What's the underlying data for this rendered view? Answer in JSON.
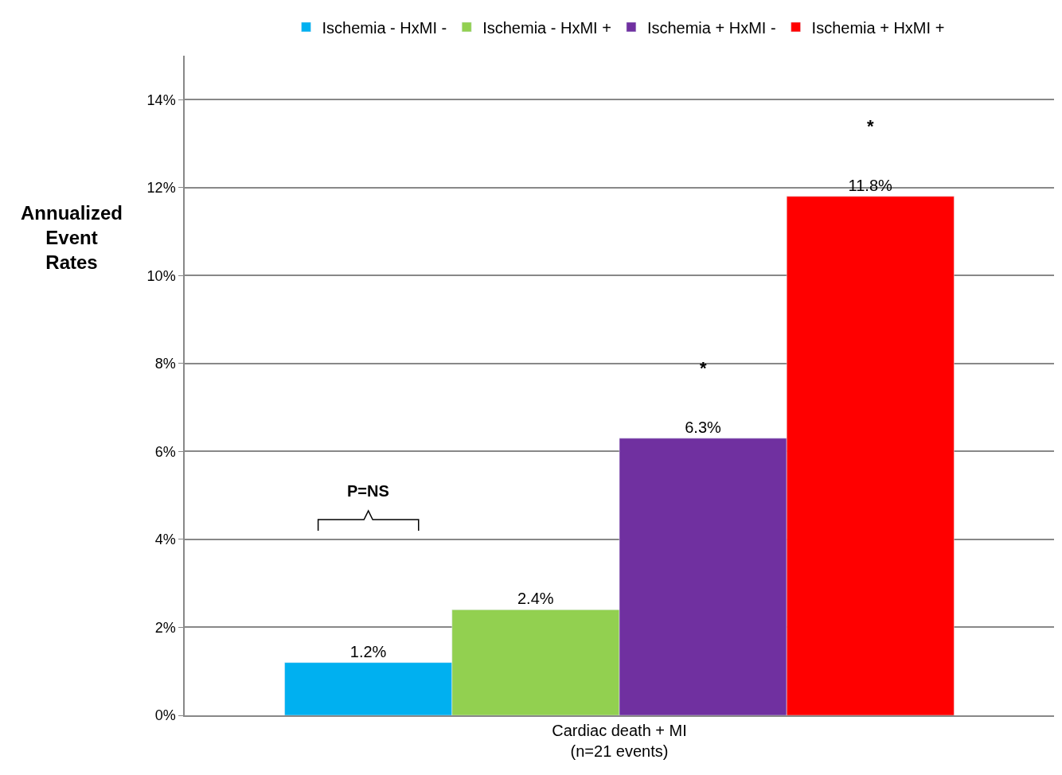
{
  "chart_data": {
    "type": "bar",
    "ylabel": "Annualized Event Rates",
    "categories": [
      "Cardiac death + MI\n(n=21 events)"
    ],
    "series": [
      {
        "name": "Ischemia - HxMI -",
        "color": "#00b0f0",
        "values": [
          1.2
        ],
        "value_labels": [
          "1.2%"
        ]
      },
      {
        "name": "Ischemia - HxMI +",
        "color": "#92d050",
        "values": [
          2.4
        ],
        "value_labels": [
          "2.4%"
        ]
      },
      {
        "name": "Ischemia + HxMI -",
        "color": "#7030a0",
        "values": [
          6.3
        ],
        "value_labels": [
          "6.3%"
        ]
      },
      {
        "name": "Ischemia + HxMI +",
        "color": "#ff0000",
        "values": [
          11.8
        ],
        "value_labels": [
          "11.8%"
        ]
      }
    ],
    "annotations": [
      "P=NS",
      "*",
      "*"
    ],
    "ylim": [
      0,
      15
    ],
    "yticks": [
      {
        "value": 0,
        "label": "0%"
      },
      {
        "value": 2,
        "label": "2%"
      },
      {
        "value": 4,
        "label": "4%"
      },
      {
        "value": 6,
        "label": "6%"
      },
      {
        "value": 8,
        "label": "8%"
      },
      {
        "value": 10,
        "label": "10%"
      },
      {
        "value": 12,
        "label": "12%"
      },
      {
        "value": 14,
        "label": "14%"
      }
    ],
    "grid": "y",
    "legend": "top"
  }
}
